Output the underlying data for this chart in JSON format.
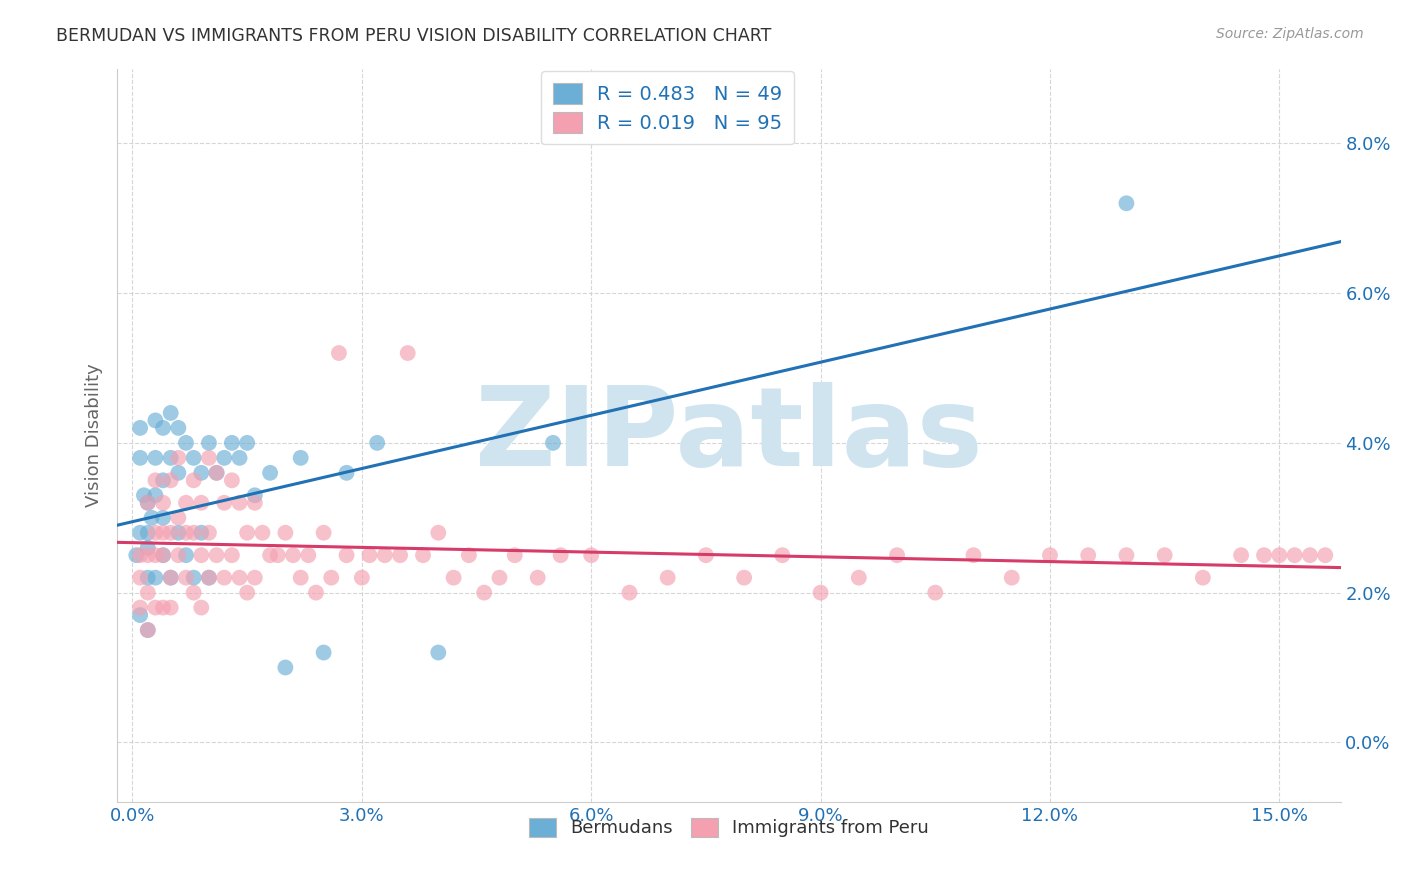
{
  "title": "BERMUDAN VS IMMIGRANTS FROM PERU VISION DISABILITY CORRELATION CHART",
  "source": "Source: ZipAtlas.com",
  "ylabel": "Vision Disability",
  "xlabel_ticks": [
    "0.0%",
    "3.0%",
    "6.0%",
    "9.0%",
    "12.0%",
    "15.0%"
  ],
  "xlabel_vals": [
    0.0,
    0.03,
    0.06,
    0.09,
    0.12,
    0.15
  ],
  "ylabel_ticks": [
    "0.0%",
    "2.0%",
    "4.0%",
    "6.0%",
    "8.0%"
  ],
  "ylabel_vals": [
    0.0,
    0.02,
    0.04,
    0.06,
    0.08
  ],
  "xlim": [
    -0.002,
    0.158
  ],
  "ylim": [
    -0.008,
    0.09
  ],
  "bermudans_R": 0.483,
  "bermudans_N": 49,
  "peru_R": 0.019,
  "peru_N": 95,
  "bermudans_color": "#6baed6",
  "peru_color": "#f4a0b0",
  "bermudans_line_color": "#2171b5",
  "peru_line_color": "#d63b6a",
  "legend_text_color": "#2171b5",
  "watermark": "ZIPatlas",
  "watermark_color": "#d0e4f0",
  "background_color": "#ffffff",
  "grid_color": "#cccccc",
  "title_color": "#333333",
  "bermudans_x": [
    0.0005,
    0.001,
    0.001,
    0.001,
    0.001,
    0.0015,
    0.002,
    0.002,
    0.002,
    0.002,
    0.002,
    0.0025,
    0.003,
    0.003,
    0.003,
    0.003,
    0.004,
    0.004,
    0.004,
    0.004,
    0.005,
    0.005,
    0.005,
    0.006,
    0.006,
    0.006,
    0.007,
    0.007,
    0.008,
    0.008,
    0.009,
    0.009,
    0.01,
    0.01,
    0.011,
    0.012,
    0.013,
    0.014,
    0.015,
    0.016,
    0.018,
    0.02,
    0.022,
    0.025,
    0.028,
    0.032,
    0.04,
    0.055,
    0.13
  ],
  "bermudans_y": [
    0.025,
    0.042,
    0.038,
    0.028,
    0.017,
    0.033,
    0.032,
    0.028,
    0.026,
    0.022,
    0.015,
    0.03,
    0.043,
    0.038,
    0.033,
    0.022,
    0.042,
    0.035,
    0.03,
    0.025,
    0.044,
    0.038,
    0.022,
    0.042,
    0.036,
    0.028,
    0.04,
    0.025,
    0.038,
    0.022,
    0.036,
    0.028,
    0.04,
    0.022,
    0.036,
    0.038,
    0.04,
    0.038,
    0.04,
    0.033,
    0.036,
    0.01,
    0.038,
    0.012,
    0.036,
    0.04,
    0.012,
    0.04,
    0.072
  ],
  "peru_x": [
    0.001,
    0.001,
    0.001,
    0.002,
    0.002,
    0.002,
    0.002,
    0.003,
    0.003,
    0.003,
    0.003,
    0.004,
    0.004,
    0.004,
    0.004,
    0.005,
    0.005,
    0.005,
    0.005,
    0.006,
    0.006,
    0.006,
    0.007,
    0.007,
    0.007,
    0.008,
    0.008,
    0.008,
    0.009,
    0.009,
    0.009,
    0.01,
    0.01,
    0.01,
    0.011,
    0.011,
    0.012,
    0.012,
    0.013,
    0.013,
    0.014,
    0.014,
    0.015,
    0.015,
    0.016,
    0.016,
    0.017,
    0.018,
    0.019,
    0.02,
    0.021,
    0.022,
    0.023,
    0.024,
    0.025,
    0.026,
    0.027,
    0.028,
    0.03,
    0.031,
    0.033,
    0.035,
    0.036,
    0.038,
    0.04,
    0.042,
    0.044,
    0.046,
    0.048,
    0.05,
    0.053,
    0.056,
    0.06,
    0.065,
    0.07,
    0.075,
    0.08,
    0.085,
    0.09,
    0.095,
    0.1,
    0.105,
    0.11,
    0.115,
    0.12,
    0.125,
    0.13,
    0.135,
    0.14,
    0.145,
    0.148,
    0.15,
    0.152,
    0.154,
    0.156
  ],
  "peru_y": [
    0.025,
    0.022,
    0.018,
    0.032,
    0.025,
    0.02,
    0.015,
    0.035,
    0.028,
    0.025,
    0.018,
    0.032,
    0.028,
    0.025,
    0.018,
    0.035,
    0.028,
    0.022,
    0.018,
    0.038,
    0.03,
    0.025,
    0.032,
    0.028,
    0.022,
    0.035,
    0.028,
    0.02,
    0.032,
    0.025,
    0.018,
    0.038,
    0.028,
    0.022,
    0.036,
    0.025,
    0.032,
    0.022,
    0.035,
    0.025,
    0.032,
    0.022,
    0.028,
    0.02,
    0.032,
    0.022,
    0.028,
    0.025,
    0.025,
    0.028,
    0.025,
    0.022,
    0.025,
    0.02,
    0.028,
    0.022,
    0.052,
    0.025,
    0.022,
    0.025,
    0.025,
    0.025,
    0.052,
    0.025,
    0.028,
    0.022,
    0.025,
    0.02,
    0.022,
    0.025,
    0.022,
    0.025,
    0.025,
    0.02,
    0.022,
    0.025,
    0.022,
    0.025,
    0.02,
    0.022,
    0.025,
    0.02,
    0.025,
    0.022,
    0.025,
    0.025,
    0.025,
    0.025,
    0.022,
    0.025,
    0.025,
    0.025,
    0.025,
    0.025,
    0.025
  ]
}
